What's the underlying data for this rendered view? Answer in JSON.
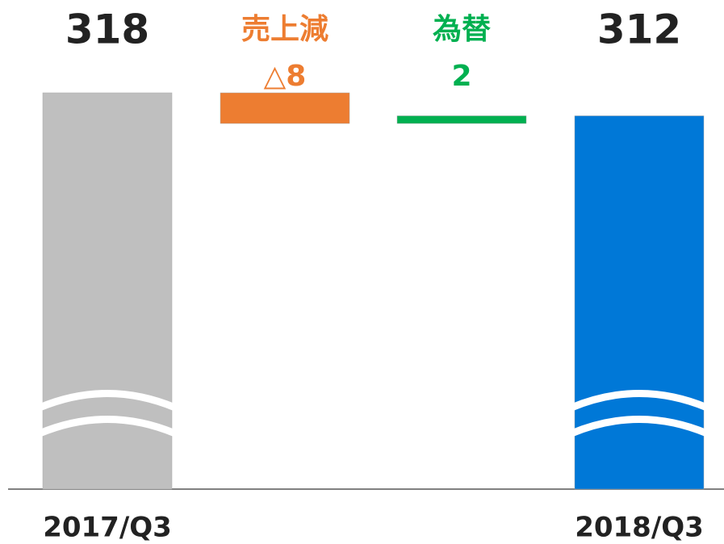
{
  "chart_data": {
    "type": "waterfall",
    "categories": [
      "2017/Q3",
      "売上減",
      "為替",
      "2018/Q3"
    ],
    "values": [
      318,
      -8,
      2,
      312
    ],
    "value_labels": [
      "318",
      "△8",
      "2",
      "312"
    ],
    "colors": [
      "#bfbfbf",
      "#ed7d31",
      "#00b050",
      "#0078d7"
    ]
  }
}
